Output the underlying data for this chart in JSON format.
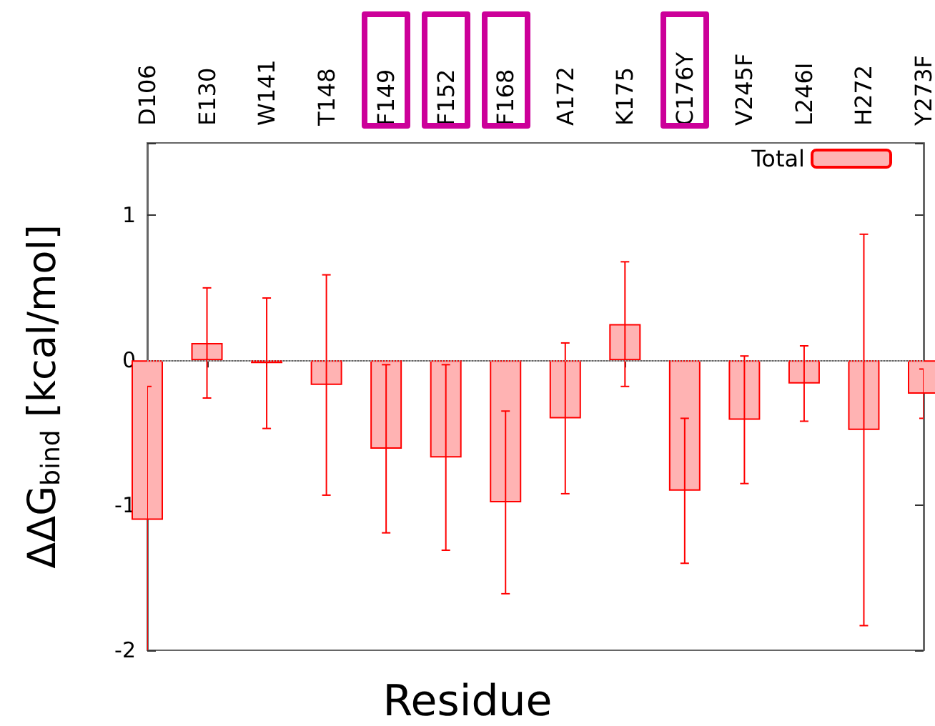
{
  "chart_data": {
    "type": "bar",
    "xlabel": "Residue",
    "ylabel": "ΔΔG$_{bind}$ [kcal/mol]",
    "categories": [
      "D106",
      "E130",
      "W141",
      "T148",
      "F149",
      "F152",
      "F168",
      "A172",
      "K175",
      "C176Y",
      "V245F",
      "L246I",
      "H272",
      "Y273F"
    ],
    "series": [
      {
        "name": "Total",
        "color": "#ffb3b3",
        "values": [
          -1.1,
          0.12,
          -0.02,
          -0.17,
          -0.61,
          -0.67,
          -0.98,
          -0.4,
          0.25,
          -0.9,
          -0.41,
          -0.16,
          -0.48,
          -0.23
        ],
        "errors": [
          0.92,
          0.38,
          0.45,
          0.76,
          0.58,
          0.64,
          0.63,
          0.52,
          0.43,
          0.5,
          0.44,
          0.26,
          1.35,
          0.17
        ]
      }
    ],
    "ylim": [
      -2,
      1.5
    ],
    "yticks": [
      -2,
      -1,
      0,
      1,
      {
        "value": 1.5,
        "label": null
      }
    ],
    "ref_lines": [
      {
        "axis": "y",
        "value": 0,
        "color": "#aaaaaa",
        "line_style": "dotted"
      }
    ],
    "legend": "top right",
    "grid": false
  }
}
